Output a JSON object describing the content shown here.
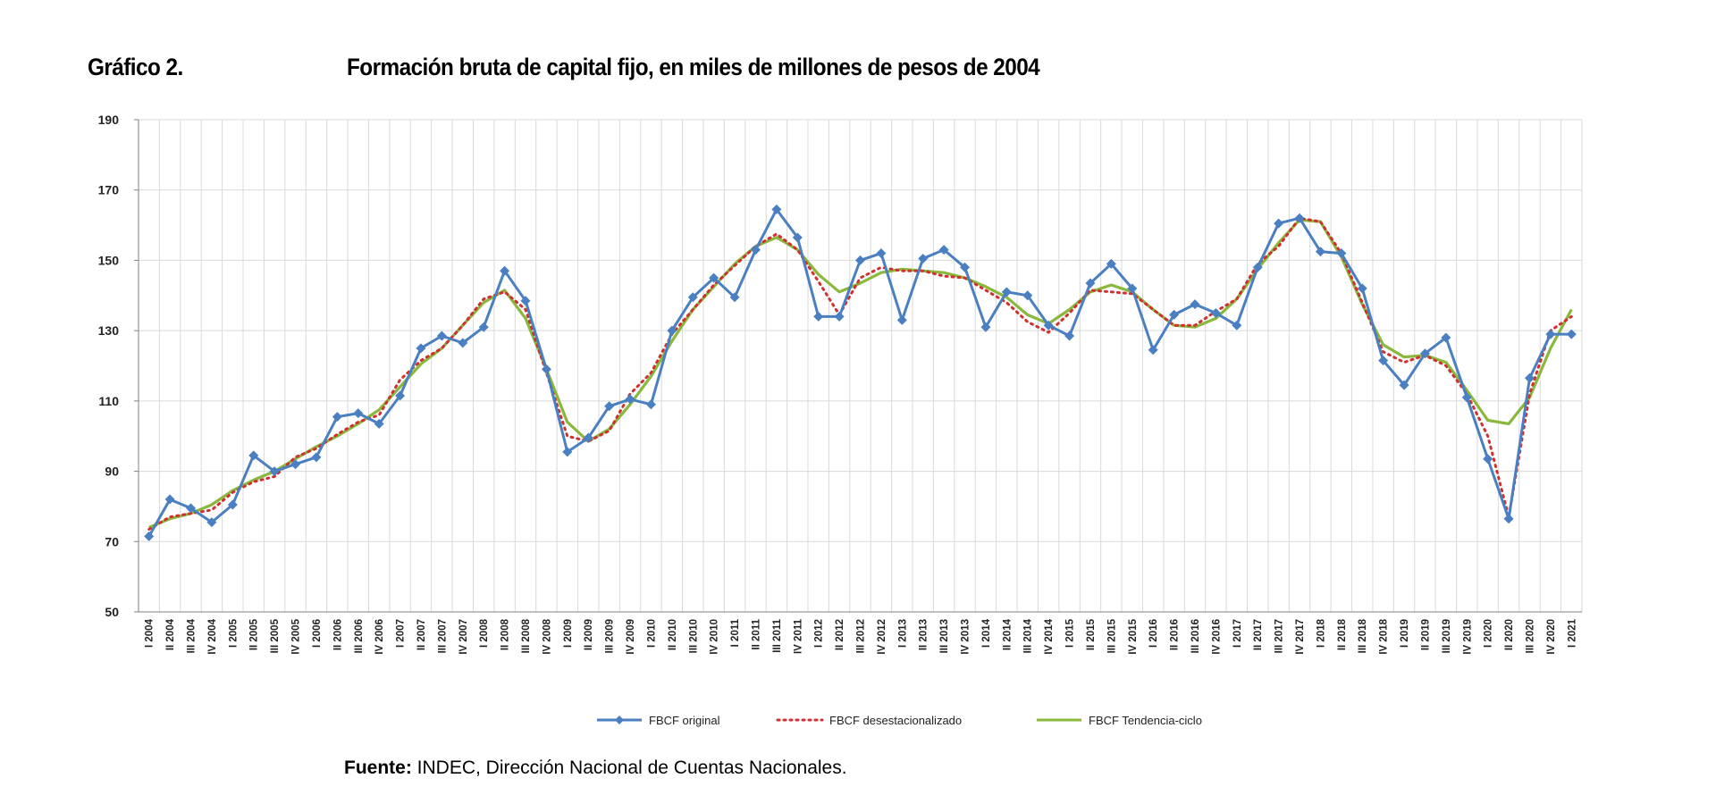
{
  "chart_label": "Gráfico 2.",
  "title": "Formación bruta de capital fijo, en miles de millones de pesos de 2004",
  "source": {
    "label": "Fuente:",
    "text": "INDEC, Dirección Nacional de Cuentas Nacionales."
  },
  "chart_data": {
    "type": "line",
    "title": "Formación bruta de capital fijo, en miles de millones de pesos de 2004",
    "xlabel": "",
    "ylabel": "",
    "ylim": [
      50,
      190
    ],
    "yticks": [
      50,
      70,
      90,
      110,
      130,
      150,
      170,
      190
    ],
    "grid": true,
    "legend_position": "bottom",
    "categories": [
      "I 2004",
      "II 2004",
      "III 2004",
      "IV 2004",
      "I 2005",
      "II 2005",
      "III 2005",
      "IV 2005",
      "I 2006",
      "II 2006",
      "III 2006",
      "IV 2006",
      "I 2007",
      "II 2007",
      "III 2007",
      "IV 2007",
      "I 2008",
      "II 2008",
      "III 2008",
      "IV 2008",
      "I 2009",
      "II 2009",
      "III 2009",
      "IV 2009",
      "I 2010",
      "II 2010",
      "III 2010",
      "IV 2010",
      "I 2011",
      "II 2011",
      "III 2011",
      "IV 2011",
      "I 2012",
      "II 2012",
      "III 2012",
      "IV 2012",
      "I 2013",
      "II 2013",
      "III 2013",
      "IV 2013",
      "I 2014",
      "II 2014",
      "III 2014",
      "IV 2014",
      "I 2015",
      "II 2015",
      "III 2015",
      "IV 2015",
      "I 2016",
      "II 2016",
      "III 2016",
      "IV 2016",
      "I 2017",
      "II 2017",
      "III 2017",
      "IV 2017",
      "I 2018",
      "II 2018",
      "III 2018",
      "IV 2018",
      "I 2019",
      "II 2019",
      "III 2019",
      "IV 2019",
      "I 2020",
      "II 2020",
      "III 2020",
      "IV 2020",
      "I 2021"
    ],
    "series": [
      {
        "name": "FBCF original",
        "color": "#4a7fc1",
        "style": "solid-marker",
        "values": [
          71.5,
          82,
          79.5,
          75.5,
          80.5,
          94.5,
          90,
          92,
          94,
          105.5,
          106.5,
          103.5,
          111.5,
          125,
          128.5,
          126.5,
          131,
          147,
          138.5,
          119,
          95.5,
          99.5,
          108.5,
          110.5,
          109,
          130,
          139.5,
          145,
          139.5,
          153,
          164.5,
          156.5,
          134,
          134,
          150,
          152,
          133,
          150.5,
          153,
          148,
          131,
          141,
          140,
          131.5,
          128.5,
          143.5,
          149,
          142,
          124.5,
          134.5,
          137.5,
          135,
          131.5,
          148,
          160.5,
          162,
          152.5,
          152,
          142,
          121.5,
          114.5,
          123.5,
          128,
          111,
          93.5,
          76.5,
          116.5,
          129,
          129
        ]
      },
      {
        "name": "FBCF desestacionalizado",
        "color": "#d03030",
        "style": "dotted",
        "values": [
          73.5,
          77,
          78,
          79,
          84,
          87,
          88.5,
          94,
          96.5,
          100.5,
          104,
          106,
          116,
          121.5,
          125,
          131.5,
          139,
          141,
          136,
          118,
          100,
          98.5,
          101.5,
          112,
          118,
          129,
          136,
          143,
          148.5,
          154,
          157.5,
          153,
          144,
          134.5,
          145,
          148,
          147,
          147,
          145.5,
          145,
          141.5,
          138,
          132.5,
          129.5,
          135,
          141.5,
          141,
          140.5,
          136,
          131.5,
          131.5,
          135.5,
          139,
          149,
          154,
          162,
          161,
          152,
          138,
          124,
          121,
          123,
          120,
          112,
          100,
          77,
          112,
          130,
          134
        ]
      },
      {
        "name": "FBCF Tendencia-ciclo",
        "color": "#8ab83c",
        "style": "solid",
        "values": [
          74,
          76.5,
          78,
          80.5,
          84.5,
          87.5,
          90,
          93.5,
          97,
          100,
          103.5,
          107.5,
          114,
          120.5,
          125,
          131.5,
          138,
          141.5,
          133.5,
          119,
          104,
          98.5,
          102,
          109,
          117,
          127,
          136,
          142.5,
          149,
          154,
          156.5,
          153,
          146,
          141,
          143.5,
          146.5,
          147.5,
          147,
          146.5,
          145,
          142.5,
          139.5,
          134.5,
          132,
          136,
          141,
          143,
          141,
          136,
          131.5,
          131,
          133.5,
          139,
          147.5,
          155,
          161.5,
          161,
          151,
          137.5,
          126,
          122.5,
          123,
          121,
          113,
          104.5,
          103.5,
          111,
          125,
          136
        ]
      }
    ]
  }
}
